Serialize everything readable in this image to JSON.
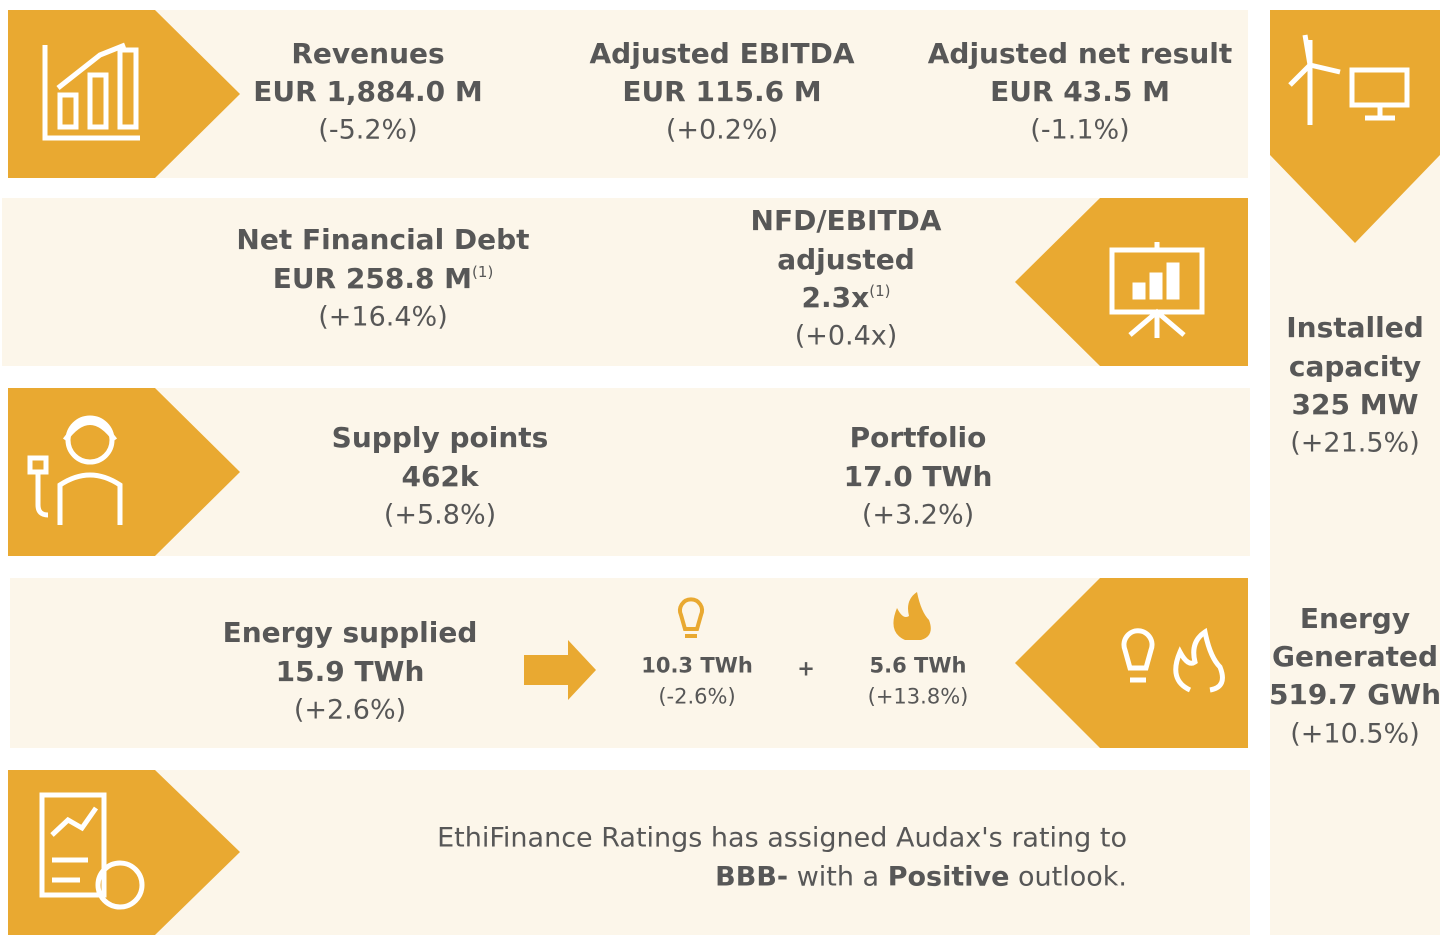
{
  "kpis": [
    {
      "title": "Revenues",
      "value": "EUR 1,884.0 M",
      "change": "(-5.2%)"
    },
    {
      "title": "Adjusted EBITDA",
      "value": "EUR 115.6 M",
      "change": "(+0.2%)"
    },
    {
      "title": "Adjusted net result",
      "value": "EUR 43.5 M",
      "change": "(-1.1%)"
    }
  ],
  "debt": {
    "title": "Net Financial Debt",
    "value": "EUR 258.8 M",
    "note": "(1)",
    "change": "(+16.4%)"
  },
  "ratio": {
    "title_lines": [
      "NFD/EBITDA",
      "adjusted"
    ],
    "value": "2.3x",
    "note": "(1)",
    "change": "(+0.4x)"
  },
  "supply_points": {
    "title": "Supply points",
    "value": "462k",
    "change": "(+5.8%)"
  },
  "portfolio": {
    "title": "Portfolio",
    "value": "17.0 TWh",
    "change": "(+3.2%)"
  },
  "energy_supplied": {
    "title": "Energy supplied",
    "value": "15.9 TWh",
    "change": "(+2.6%)"
  },
  "split": [
    {
      "value": "10.3 TWh",
      "change": "(-2.6%)"
    },
    {
      "value": "5.6 TWh",
      "change": "(+13.8%)"
    }
  ],
  "plus": "+",
  "rating": {
    "line1": "EthiFinance Ratings has assigned Audax's rating to",
    "grade": "BBB-",
    "mid": " with a ",
    "outlook": "Positive",
    "end": " outlook."
  },
  "capacity": {
    "lines": [
      "Installed",
      "capacity",
      "325 MW"
    ],
    "change": "(+21.5%)"
  },
  "generated": {
    "lines": [
      "Energy",
      "Generated",
      "519.7 GWh"
    ],
    "change": "(+10.5%)"
  }
}
